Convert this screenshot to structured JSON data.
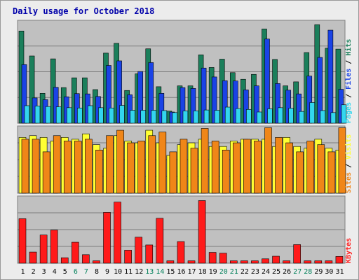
{
  "chart_data": {
    "type": "bar",
    "title": "Daily usage for October 2018",
    "categories": [
      "1",
      "2",
      "3",
      "4",
      "5",
      "6",
      "7",
      "8",
      "9",
      "10",
      "11",
      "12",
      "13",
      "14",
      "15",
      "16",
      "17",
      "18",
      "19",
      "20",
      "21",
      "22",
      "23",
      "24",
      "25",
      "26",
      "27",
      "28",
      "29",
      "30",
      "31"
    ],
    "weekend_days": [
      "6",
      "7",
      "13",
      "14",
      "20",
      "21",
      "27",
      "28"
    ],
    "grid": true,
    "panels": [
      {
        "name": "hits-files-pages",
        "ymax_label": "3485",
        "ymax": 3485,
        "legend": [
          "Pages",
          "Files",
          "Hits"
        ],
        "series": [
          {
            "name": "Hits",
            "color": "#1b7f5b",
            "values": [
              3210,
              2340,
              1040,
              2240,
              1240,
              1580,
              1580,
              1170,
              2440,
              2780,
              1140,
              1720,
              2590,
              1270,
              420,
              1300,
              1300,
              2380,
              1940,
              2230,
              1760,
              1530,
              1700,
              3280,
              2220,
              1300,
              1440,
              2460,
              3430,
              2610,
              2580
            ]
          },
          {
            "name": "Files",
            "color": "#1a43e6",
            "values": [
              2040,
              880,
              820,
              1250,
              920,
              1030,
              1020,
              930,
              2010,
              2170,
              990,
              1800,
              2110,
              1040,
              390,
              1240,
              1210,
              1920,
              1610,
              1480,
              1470,
              1160,
              1300,
              2930,
              1380,
              1150,
              1020,
              1640,
              2290,
              3240,
              1180
            ]
          },
          {
            "name": "Pages",
            "color": "#33d6ee",
            "values": [
              610,
              600,
              580,
              570,
              540,
              530,
              610,
              540,
              530,
              620,
              450,
              450,
              450,
              440,
              370,
              430,
              430,
              460,
              450,
              560,
              510,
              480,
              390,
              500,
              540,
              520,
              410,
              720,
              440,
              370,
              640
            ]
          }
        ]
      },
      {
        "name": "visits-sites",
        "ymax_label": "179",
        "ymax": 179,
        "legend": [
          "Sites",
          "Visits"
        ],
        "series": [
          {
            "name": "Visits",
            "color": "#ffff33",
            "values": [
              155,
              160,
              155,
              145,
              155,
              150,
              165,
              135,
              125,
              160,
              145,
              140,
              175,
              140,
              105,
              135,
              140,
              150,
              130,
              130,
              145,
              150,
              150,
              150,
              130,
              155,
              130,
              125,
              150,
              125,
              120
            ]
          },
          {
            "name": "Sites",
            "color": "#f08618",
            "values": [
              150,
              150,
              115,
              160,
              145,
              145,
              150,
              120,
              160,
              175,
              140,
              145,
              160,
              170,
              115,
              150,
              125,
              180,
              145,
              120,
              140,
              150,
              145,
              182,
              155,
              140,
              115,
              145,
              135,
              115,
              182
            ]
          }
        ]
      },
      {
        "name": "kbytes",
        "ymax_label": "589299",
        "ymax": 589299,
        "legend": [
          "KBytes"
        ],
        "series": [
          {
            "name": "KBytes",
            "color": "#ff1a1a",
            "values": [
              407000,
              102000,
              258000,
              303000,
              50000,
              192000,
              78000,
              22000,
              465000,
              559000,
              119000,
              238000,
              167000,
              411000,
              22000,
              198000,
              22000,
              573000,
              99000,
              92000,
              22000,
              22000,
              22000,
              40000,
              64000,
              22000,
              170000,
              22000,
              22000,
              22000,
              62000
            ]
          }
        ]
      }
    ]
  }
}
